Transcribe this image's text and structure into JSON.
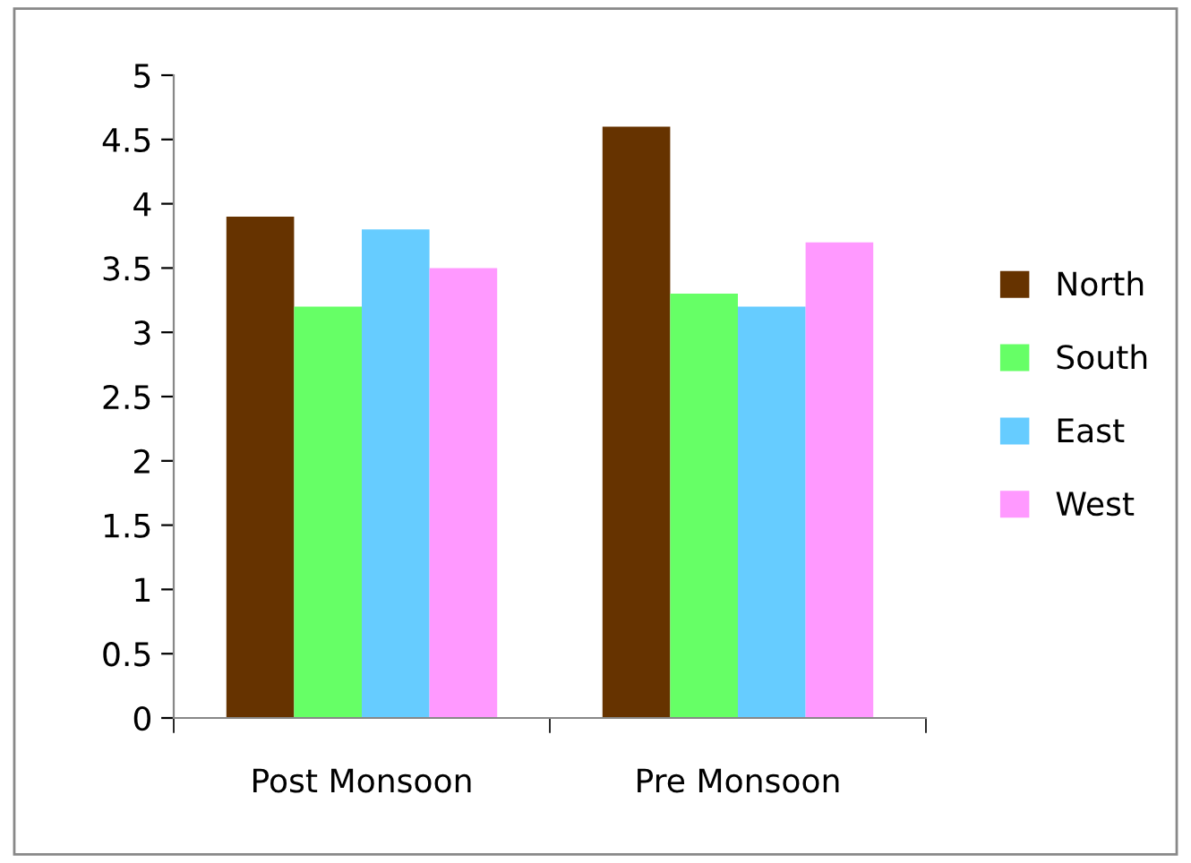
{
  "chart_data": {
    "type": "bar",
    "categories": [
      "Post Monsoon",
      "Pre Monsoon"
    ],
    "series": [
      {
        "name": "North",
        "color": "#663300",
        "values": [
          3.9,
          4.6
        ]
      },
      {
        "name": "South",
        "color": "#66ff66",
        "values": [
          3.2,
          3.3
        ]
      },
      {
        "name": "East",
        "color": "#66ccff",
        "values": [
          3.8,
          3.2
        ]
      },
      {
        "name": "West",
        "color": "#ff99ff",
        "values": [
          3.5,
          3.7
        ]
      }
    ],
    "ylim": [
      0,
      5
    ],
    "yticks": [
      0,
      0.5,
      1,
      1.5,
      2,
      2.5,
      3,
      3.5,
      4,
      4.5,
      5
    ],
    "grid": false,
    "legend": "right"
  }
}
